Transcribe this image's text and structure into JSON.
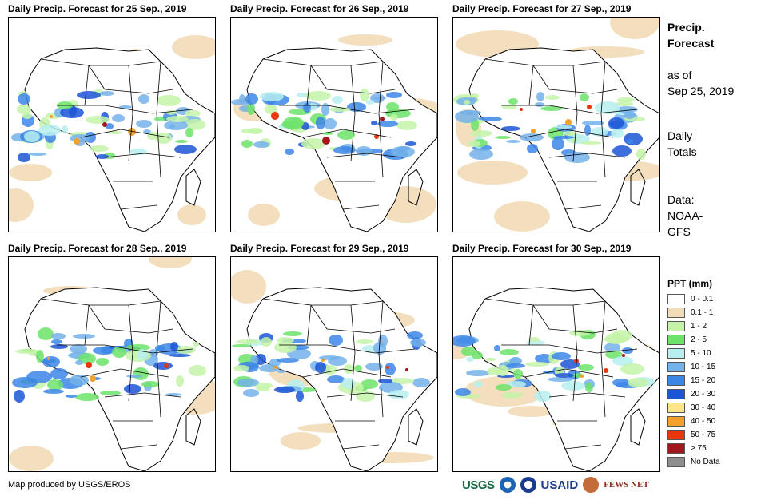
{
  "panels": [
    {
      "title": "Daily Precip. Forecast for 25 Sep., 2019"
    },
    {
      "title": "Daily Precip. Forecast for 26 Sep., 2019"
    },
    {
      "title": "Daily Precip. Forecast for 27 Sep., 2019"
    },
    {
      "title": "Daily Precip. Forecast for 28 Sep., 2019"
    },
    {
      "title": "Daily Precip. Forecast for 29 Sep., 2019"
    },
    {
      "title": "Daily Precip. Forecast for 30 Sep., 2019"
    }
  ],
  "sidebar": {
    "heading_line1": "Precip.",
    "heading_line2": "Forecast",
    "asof_line1": "as of",
    "asof_line2": "Sep 25, 2019",
    "totals_line1": "Daily",
    "totals_line2": "Totals",
    "data_line1": "Data:",
    "data_line2": "NOAA-",
    "data_line3": "GFS"
  },
  "legend": {
    "title": "PPT (mm)",
    "items": [
      {
        "label": "0 - 0.1",
        "color": "#ffffff"
      },
      {
        "label": "0.1 - 1",
        "color": "#f2dcb7"
      },
      {
        "label": "1 - 2",
        "color": "#c4f3a8"
      },
      {
        "label": "2 - 5",
        "color": "#6de36a"
      },
      {
        "label": "5 - 10",
        "color": "#b7eff0"
      },
      {
        "label": "10 - 15",
        "color": "#74b2ea"
      },
      {
        "label": "15 - 20",
        "color": "#3c86e6"
      },
      {
        "label": "20 - 30",
        "color": "#1c55d6"
      },
      {
        "label": "30 - 40",
        "color": "#fde58a"
      },
      {
        "label": "40 - 50",
        "color": "#f3a02c"
      },
      {
        "label": "50 - 75",
        "color": "#e8360e"
      },
      {
        "label": "> 75",
        "color": "#a3191b"
      },
      {
        "label": "No Data",
        "color": "#8e8e8e"
      }
    ]
  },
  "footer": {
    "credit": "Map produced by USGS/EROS",
    "logo_usgs": "USGS",
    "logo_usaid": "USAID",
    "logo_fews": "FEWS NET"
  }
}
